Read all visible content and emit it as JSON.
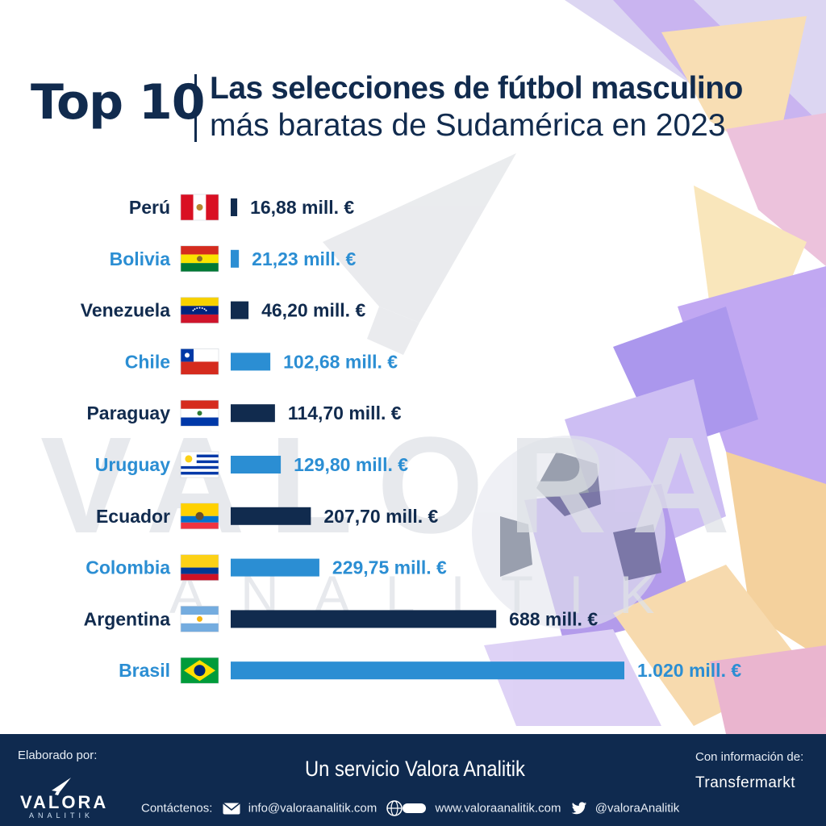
{
  "header": {
    "top": "Top 10",
    "line1": "Las selecciones de fútbol masculino",
    "line2": "más baratas de Sudamérica en 2023"
  },
  "watermark": {
    "brand": "VALORA",
    "sub": "ANALITIK"
  },
  "colors": {
    "navy": "#112b4e",
    "blue": "#2b8ed3"
  },
  "chart_data": {
    "type": "bar",
    "orientation": "horizontal",
    "categories": [
      "Perú",
      "Bolivia",
      "Venezuela",
      "Chile",
      "Paraguay",
      "Uruguay",
      "Ecuador",
      "Colombia",
      "Argentina",
      "Brasil"
    ],
    "values": [
      16.88,
      21.23,
      46.2,
      102.68,
      114.7,
      129.8,
      207.7,
      229.75,
      688,
      1020
    ],
    "value_labels": [
      "16,88 mill. €",
      "21,23 mill. €",
      "46,20 mill. €",
      "102,68 mill. €",
      "114,70 mill. €",
      "129,80 mill. €",
      "207,70 mill. €",
      "229,75 mill. €",
      "688 mill. €",
      "1.020  mill. €"
    ],
    "flags": [
      "peru",
      "bolivia",
      "venezuela",
      "chile",
      "paraguay",
      "uruguay",
      "ecuador",
      "colombia",
      "argentina",
      "brazil"
    ],
    "bar_colors": [
      "#112b4e",
      "#2b8ed3",
      "#112b4e",
      "#2b8ed3",
      "#112b4e",
      "#2b8ed3",
      "#112b4e",
      "#2b8ed3",
      "#112b4e",
      "#2b8ed3"
    ]
  },
  "footer": {
    "made_by": "Elaborado por:",
    "logo_name": "VALORA",
    "logo_sub": "ANALITIK",
    "service": "Un servicio Valora Analitik",
    "contact_label": "Contáctenos:",
    "email": "info@valoraanalitik.com",
    "website": "www.valoraanalitik.com",
    "twitter": "@valoraAnalitik",
    "source_label": "Con información de:",
    "source": "Transfermarkt"
  }
}
